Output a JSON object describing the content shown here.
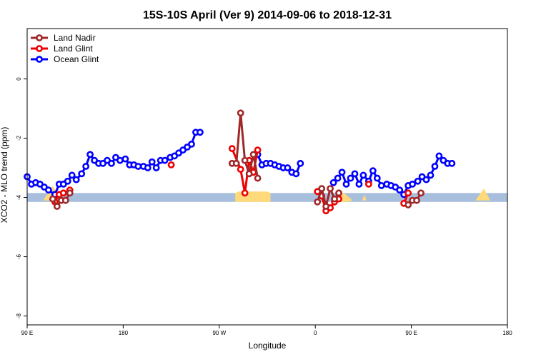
{
  "chart_data": {
    "type": "line",
    "title": "15S-10S April (Ver 9)   2014-09-06 to 2018-12-31",
    "xlabel": "Longitude",
    "ylabel": "XCO2 - MLO trend (ppm)",
    "xlim": [
      90,
      450
    ],
    "ylim": [
      -8.3,
      1.7
    ],
    "x_ticks": [
      {
        "value": 90,
        "label": "90 E"
      },
      {
        "value": 180,
        "label": "180"
      },
      {
        "value": 270,
        "label": "90 W"
      },
      {
        "value": 360,
        "label": "0"
      },
      {
        "value": 450,
        "label": "90 E"
      }
    ],
    "x_ticks_extra": [
      {
        "value": 540,
        "label": "180"
      }
    ],
    "y_ticks": [
      {
        "value": 0,
        "label": "0"
      },
      {
        "value": -2,
        "label": "-2"
      },
      {
        "value": -4,
        "label": "-4"
      },
      {
        "value": -6,
        "label": "-6"
      },
      {
        "value": -8,
        "label": "-8"
      }
    ],
    "legend_position": "top-left",
    "band": {
      "y_min": -4.15,
      "y_max": -3.85,
      "color": "#a7bfdd"
    },
    "land_patches": {
      "color": "#ffd97a",
      "patches": [
        [
          [
            105,
            -4.1
          ],
          [
            114,
            -3.6
          ],
          [
            122,
            -4.1
          ]
        ],
        [
          [
            285,
            -3.85
          ],
          [
            288,
            -3.8
          ],
          [
            315,
            -3.8
          ],
          [
            318,
            -3.85
          ],
          [
            318,
            -4.15
          ],
          [
            285,
            -4.15
          ]
        ],
        [
          [
            381,
            -3.9
          ],
          [
            387,
            -3.85
          ],
          [
            395,
            -4.1
          ],
          [
            390,
            -4.15
          ],
          [
            383,
            -4.15
          ]
        ],
        [
          [
            404,
            -4.1
          ],
          [
            406,
            -3.9
          ],
          [
            408,
            -4.1
          ]
        ],
        [
          [
            510,
            -4.1
          ],
          [
            518,
            -3.7
          ],
          [
            524,
            -4.1
          ]
        ]
      ]
    },
    "series": [
      {
        "name": "Ocean Glint",
        "color": "#0000ff",
        "segments": [
          [
            [
              90,
              -3.3
            ],
            [
              94,
              -3.55
            ],
            [
              98,
              -3.5
            ],
            [
              102,
              -3.55
            ],
            [
              106,
              -3.65
            ],
            [
              110,
              -3.75
            ],
            [
              116,
              -3.9
            ],
            [
              120,
              -3.55
            ],
            [
              124,
              -3.55
            ],
            [
              128,
              -3.45
            ],
            [
              132,
              -3.25
            ],
            [
              136,
              -3.4
            ],
            [
              141,
              -3.2
            ],
            [
              145,
              -2.95
            ],
            [
              149,
              -2.55
            ],
            [
              153,
              -2.75
            ],
            [
              157,
              -2.85
            ],
            [
              161,
              -2.85
            ],
            [
              165,
              -2.75
            ],
            [
              169,
              -2.85
            ],
            [
              173,
              -2.65
            ],
            [
              177,
              -2.75
            ],
            [
              182,
              -2.7
            ],
            [
              186,
              -2.9
            ],
            [
              190,
              -2.9
            ],
            [
              194,
              -2.95
            ],
            [
              199,
              -2.95
            ],
            [
              203,
              -3.0
            ],
            [
              207,
              -2.8
            ],
            [
              211,
              -3.0
            ],
            [
              215,
              -2.75
            ],
            [
              219,
              -2.75
            ],
            [
              224,
              -2.65
            ],
            [
              228,
              -2.6
            ],
            [
              232,
              -2.5
            ],
            [
              236,
              -2.4
            ],
            [
              240,
              -2.3
            ],
            [
              244,
              -2.2
            ],
            [
              248,
              -1.8
            ],
            [
              252,
              -1.8
            ]
          ],
          [
            [
              306,
              -2.55
            ],
            [
              310,
              -2.9
            ],
            [
              314,
              -2.85
            ],
            [
              318,
              -2.85
            ],
            [
              322,
              -2.9
            ],
            [
              326,
              -2.95
            ],
            [
              330,
              -3.0
            ],
            [
              334,
              -3.0
            ],
            [
              338,
              -3.15
            ],
            [
              342,
              -3.2
            ],
            [
              346,
              -2.85
            ]
          ],
          [
            [
              377,
              -3.5
            ],
            [
              381,
              -3.35
            ],
            [
              385,
              -3.15
            ],
            [
              389,
              -3.55
            ],
            [
              393,
              -3.35
            ],
            [
              397,
              -3.2
            ],
            [
              401,
              -3.55
            ],
            [
              405,
              -3.25
            ],
            [
              410,
              -3.45
            ],
            [
              414,
              -3.1
            ],
            [
              418,
              -3.35
            ],
            [
              422,
              -3.6
            ],
            [
              427,
              -3.55
            ],
            [
              431,
              -3.6
            ],
            [
              435,
              -3.65
            ],
            [
              439,
              -3.75
            ],
            [
              443,
              -3.9
            ],
            [
              447,
              -3.6
            ],
            [
              451,
              -3.55
            ],
            [
              456,
              -3.45
            ],
            [
              460,
              -3.3
            ],
            [
              464,
              -3.4
            ],
            [
              468,
              -3.25
            ],
            [
              472,
              -2.95
            ],
            [
              476,
              -2.6
            ],
            [
              480,
              -2.75
            ],
            [
              484,
              -2.85
            ],
            [
              488,
              -2.85
            ]
          ]
        ]
      },
      {
        "name": "Land Glint",
        "color": "#ee0000",
        "segments": [
          [
            [
              116,
              -4.15
            ],
            [
              120,
              -3.9
            ],
            [
              124,
              -3.85
            ],
            [
              130,
              -3.75
            ]
          ],
          [
            [
              225,
              -2.9
            ]
          ],
          [
            [
              282,
              -2.35
            ],
            [
              290,
              -3.05
            ],
            [
              294,
              -3.85
            ],
            [
              298,
              -2.75
            ],
            [
              302,
              -3.15
            ],
            [
              306,
              -2.4
            ]
          ],
          [
            [
              362,
              -3.8
            ],
            [
              366,
              -3.95
            ],
            [
              370,
              -4.45
            ],
            [
              374,
              -4.35
            ],
            [
              378,
              -4.15
            ],
            [
              382,
              -4.05
            ]
          ],
          [
            [
              410,
              -3.55
            ]
          ],
          [
            [
              443,
              -4.2
            ],
            [
              447,
              -3.85
            ]
          ]
        ]
      },
      {
        "name": "Land Nadir",
        "color": "#a02828",
        "segments": [
          [
            [
              114,
              -4.05
            ],
            [
              118,
              -4.3
            ],
            [
              122,
              -4.1
            ],
            [
              126,
              -4.1
            ],
            [
              130,
              -3.85
            ]
          ],
          [
            [
              282,
              -2.85
            ],
            [
              286,
              -2.85
            ],
            [
              290,
              -1.15
            ],
            [
              294,
              -2.75
            ],
            [
              298,
              -3.2
            ],
            [
              302,
              -2.55
            ],
            [
              306,
              -3.35
            ]
          ],
          [
            [
              362,
              -4.15
            ],
            [
              366,
              -3.7
            ],
            [
              370,
              -4.3
            ],
            [
              374,
              -3.7
            ],
            [
              378,
              -4.05
            ],
            [
              382,
              -3.85
            ]
          ],
          [
            [
              447,
              -4.25
            ],
            [
              451,
              -4.1
            ],
            [
              455,
              -4.1
            ],
            [
              459,
              -3.85
            ]
          ]
        ]
      }
    ]
  }
}
